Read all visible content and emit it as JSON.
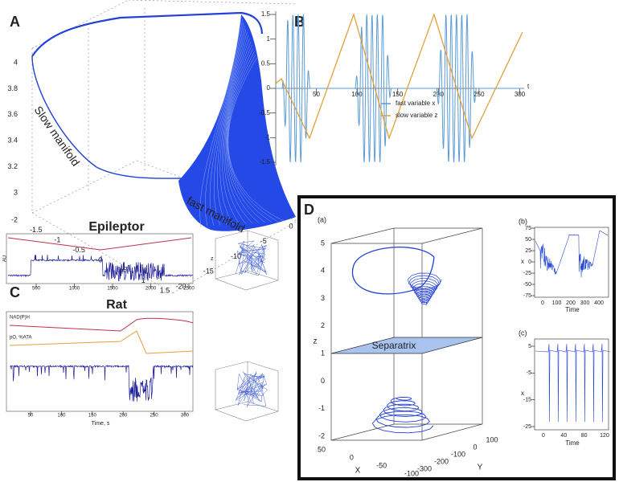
{
  "panel_a": {
    "label": "A",
    "slow_label": "Slow manifold",
    "fast_label": "fast manifold",
    "z_ticks": [
      3,
      3.2,
      3.4,
      3.6,
      3.8,
      4
    ],
    "x_ticks": [
      -2,
      -1.5,
      -1,
      -0.5,
      0,
      0.5,
      1,
      1.5
    ],
    "y_ticks": [
      0,
      -5,
      -10,
      -15,
      -20
    ]
  },
  "panel_b": {
    "label": "B",
    "axis_label": "t",
    "x_ticks": [
      50,
      100,
      150,
      200,
      250,
      300
    ],
    "y_ticks": [
      -1.5,
      -1,
      -0.5,
      0,
      0.5,
      1,
      1.5
    ],
    "legend": [
      {
        "name": "fast variable x",
        "color": "#5b9bd5"
      },
      {
        "name": "slow variable z",
        "color": "#e3a03a"
      }
    ]
  },
  "panel_c": {
    "label": "C",
    "top_title": "Epileptor",
    "top_y_label": "AU",
    "top_x_ticks": [
      500,
      1000,
      1500,
      2000,
      2500
    ],
    "bottom_title": "Rat",
    "traces": [
      "NAD(P)H",
      "pO, %ATA"
    ],
    "bottom_x_ticks": [
      50,
      100,
      150,
      200,
      250,
      300
    ],
    "bottom_x_label": "Time, s",
    "inset_label": "z"
  },
  "panel_d": {
    "label": "D",
    "sub_a": "(a)",
    "plane_label": "Separatrix",
    "z_label": "z",
    "x_label": "X",
    "y_label": "Y",
    "z_ticks": [
      -2,
      -1,
      0,
      1,
      2,
      3,
      4,
      5
    ],
    "x_ticks": [
      50,
      0,
      -50,
      -100
    ],
    "y_ticks": [
      100,
      0,
      -100,
      -200,
      -300
    ],
    "sub_b": "(b)",
    "b_y_ticks": [
      75,
      50,
      25,
      0,
      -25,
      -50,
      -75
    ],
    "b_x_ticks": [
      0,
      100,
      200,
      300,
      400
    ],
    "b_x_label": "Time",
    "b_y_label": "x",
    "sub_c": "(c)",
    "c_y_ticks": [
      5,
      -5,
      -15,
      -25
    ],
    "c_x_ticks": [
      0,
      40,
      80,
      120
    ],
    "c_x_label": "Time",
    "c_y_label": "x"
  }
}
